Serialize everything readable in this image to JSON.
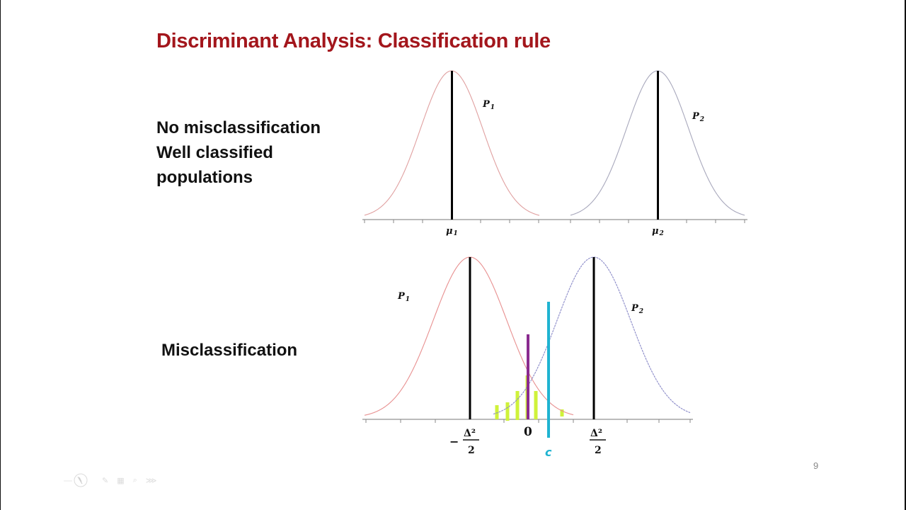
{
  "slide": {
    "title": "Discriminant Analysis: Classification rule",
    "title_color": "#a3161c",
    "page_number": "9",
    "top_section": {
      "lines": [
        "No misclassification",
        "Well classified",
        "populations"
      ]
    },
    "bottom_section": {
      "label": "Misclassification"
    }
  },
  "top_chart": {
    "curve1_label": "P",
    "curve1_sub": "1",
    "curve2_label": "P",
    "curve2_sub": "2",
    "mean1_label": "μ",
    "mean1_sub": "1",
    "mean2_label": "μ",
    "mean2_sub": "2",
    "curve1_color": "#e0a0a0",
    "curve2_color": "#a0a0b8"
  },
  "bottom_chart": {
    "curve1_label": "P",
    "curve1_sub": "1",
    "curve2_label": "P",
    "curve2_sub": "2",
    "left_mean_label": "−",
    "delta_numerator": "Δ²",
    "delta_denominator": "2",
    "zero_label": "0",
    "cutoff_label": "c",
    "curve1_color": "#e89090",
    "curve2_color": "#9090c8",
    "zero_line_color": "#8a2b8f",
    "cutoff_line_color": "#1fb3d1",
    "overlap_bar_color": "#cff23a"
  },
  "toolbar": {
    "icons": [
      "pointer-icon",
      "pen-icon",
      "grid-icon",
      "zoom-icon",
      "more-icon"
    ]
  }
}
